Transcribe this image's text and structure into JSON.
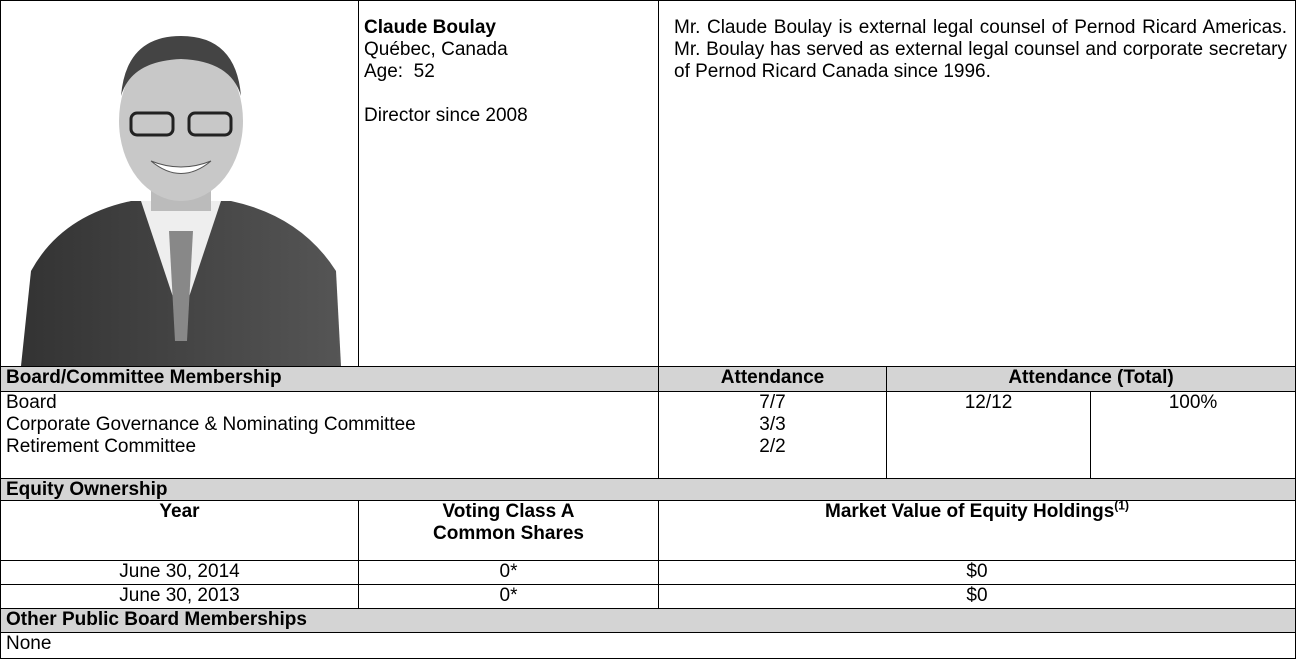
{
  "profile": {
    "name": "Claude Boulay",
    "location": "Québec, Canada",
    "age": "Age:  52",
    "director_since": "Director since 2008",
    "bio": "Mr. Claude Boulay is external legal counsel of Pernod Ricard Americas. Mr. Boulay has served as external legal counsel and corporate secretary of Pernod Ricard Canada since 1996."
  },
  "membership": {
    "header": [
      "Board/Committee Membership",
      "Attendance",
      "Attendance (Total)"
    ],
    "rows": [
      [
        "Board",
        "7/7"
      ],
      [
        "Corporate Governance & Nominating Committee",
        "3/3"
      ],
      [
        "Retirement Committee",
        "2/2"
      ]
    ],
    "total": [
      "12/12",
      "100%"
    ]
  },
  "equity": {
    "title": "Equity Ownership",
    "header": [
      "Year",
      "Voting Class A Common Shares",
      "Market Value of Equity Holdings"
    ],
    "footnote": "(1)",
    "rows": [
      [
        "June 30, 2014",
        "0*",
        "$0"
      ],
      [
        "June 30, 2013",
        "0*",
        "$0"
      ]
    ]
  },
  "other_boards": {
    "title": "Other Public Board Memberships",
    "value": "None"
  }
}
